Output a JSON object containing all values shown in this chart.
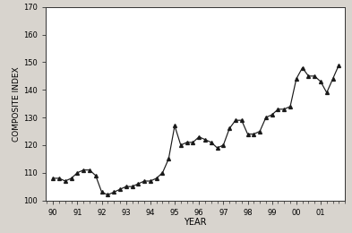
{
  "x_values": [
    1990.0,
    1990.25,
    1990.5,
    1990.75,
    1991.0,
    1991.25,
    1991.5,
    1991.75,
    1992.0,
    1992.25,
    1992.5,
    1992.75,
    1993.0,
    1993.25,
    1993.5,
    1993.75,
    1994.0,
    1994.25,
    1994.5,
    1994.75,
    1995.0,
    1995.25,
    1995.5,
    1995.75,
    1996.0,
    1996.25,
    1996.5,
    1996.75,
    1997.0,
    1997.25,
    1997.5,
    1997.75,
    1998.0,
    1998.25,
    1998.5,
    1998.75,
    1999.0,
    1999.25,
    1999.5,
    1999.75,
    2000.0,
    2000.25,
    2000.5,
    2000.75,
    2001.0,
    2001.25,
    2001.5,
    2001.75
  ],
  "y_values": [
    108,
    108,
    107,
    108,
    110,
    111,
    111,
    109,
    103,
    102,
    103,
    104,
    105,
    105,
    106,
    107,
    107,
    108,
    110,
    115,
    127,
    120,
    121,
    121,
    123,
    122,
    121,
    119,
    120,
    126,
    129,
    129,
    124,
    124,
    125,
    130,
    131,
    133,
    133,
    134,
    144,
    148,
    145,
    145,
    143,
    139,
    144,
    149
  ],
  "xlim": [
    1989.7,
    2002.0
  ],
  "ylim": [
    100,
    170
  ],
  "yticks": [
    100,
    110,
    120,
    130,
    140,
    150,
    160,
    170
  ],
  "xtick_labels": [
    "90",
    "91",
    "92",
    "93",
    "94",
    "95",
    "96",
    "97",
    "98",
    "99",
    "00",
    "01"
  ],
  "xtick_positions": [
    1990,
    1991,
    1992,
    1993,
    1994,
    1995,
    1996,
    1997,
    1998,
    1999,
    2000,
    2001
  ],
  "xlabel": "YEAR",
  "ylabel": "COMPOSITE INDEX",
  "line_color": "#1a1a1a",
  "marker": "^",
  "marker_size": 2.8,
  "line_width": 0.85,
  "bg_color": "#d8d4ce",
  "plot_bg_color": "#ffffff"
}
